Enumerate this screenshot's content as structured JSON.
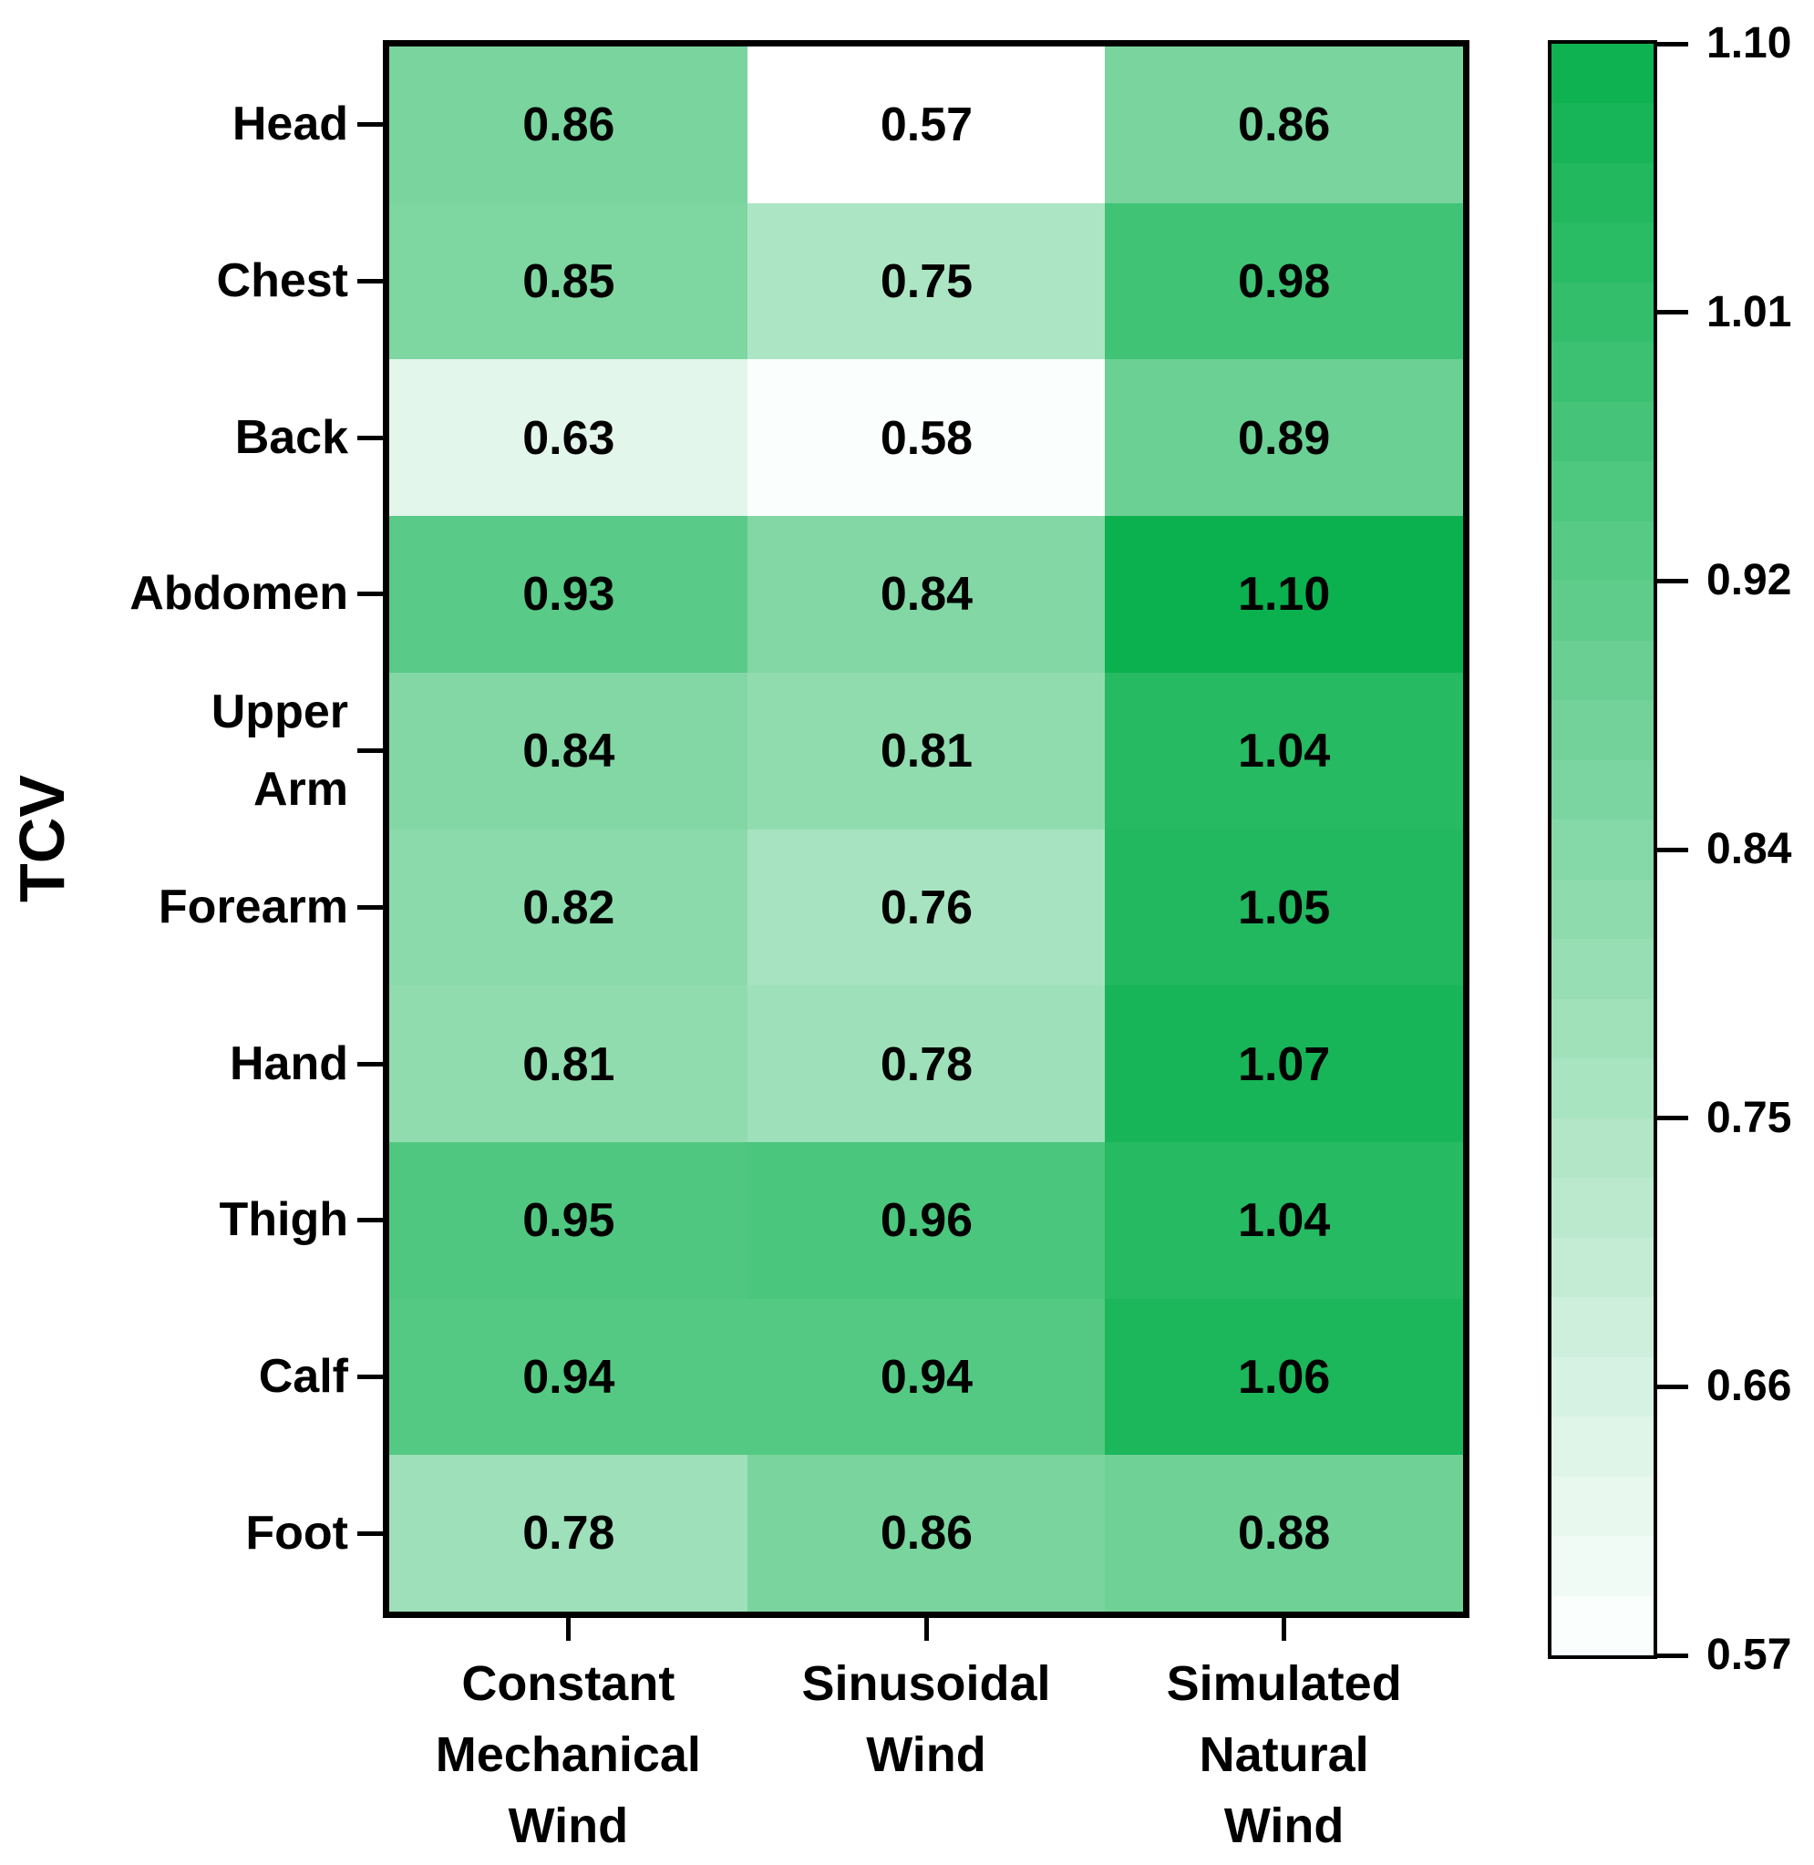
{
  "chart_data": {
    "type": "heatmap",
    "title": "",
    "xlabel": "",
    "ylabel": "TCV",
    "rows": [
      "Head",
      "Chest",
      "Back",
      "Abdomen",
      "Upper Arm",
      "Forearm",
      "Hand",
      "Thigh",
      "Calf",
      "Foot"
    ],
    "row_label_lines": [
      [
        "Head"
      ],
      [
        "Chest"
      ],
      [
        "Back"
      ],
      [
        "Abdomen"
      ],
      [
        "Upper",
        "Arm"
      ],
      [
        "Forearm"
      ],
      [
        "Hand"
      ],
      [
        "Thigh"
      ],
      [
        "Calf"
      ],
      [
        "Foot"
      ]
    ],
    "columns": [
      "Constant Mechanical Wind",
      "Sinusoidal Wind",
      "Simulated Natural Wind"
    ],
    "column_label_lines": [
      [
        "Constant",
        "Mechanical",
        "Wind"
      ],
      [
        "Sinusoidal",
        "Wind"
      ],
      [
        "Simulated",
        "Natural",
        "Wind"
      ]
    ],
    "values": [
      [
        0.86,
        0.57,
        0.86
      ],
      [
        0.85,
        0.75,
        0.98
      ],
      [
        0.63,
        0.58,
        0.89
      ],
      [
        0.93,
        0.84,
        1.1
      ],
      [
        0.84,
        0.81,
        1.04
      ],
      [
        0.82,
        0.76,
        1.05
      ],
      [
        0.81,
        0.78,
        1.07
      ],
      [
        0.95,
        0.96,
        1.04
      ],
      [
        0.94,
        0.94,
        1.06
      ],
      [
        0.78,
        0.86,
        0.88
      ]
    ],
    "value_decimals": 2,
    "cell_text_color": "#000000",
    "axis_color": "#000000",
    "grid": false,
    "legend_position": "right-colorbar",
    "colorbar": {
      "min": 0.57,
      "max": 1.1,
      "tick_labels": [
        "1.10",
        "1.01",
        "0.92",
        "0.84",
        "0.75",
        "0.66",
        "0.57"
      ],
      "min_color": "#ffffff",
      "max_color": "#0ab14e",
      "steps": 27
    }
  }
}
